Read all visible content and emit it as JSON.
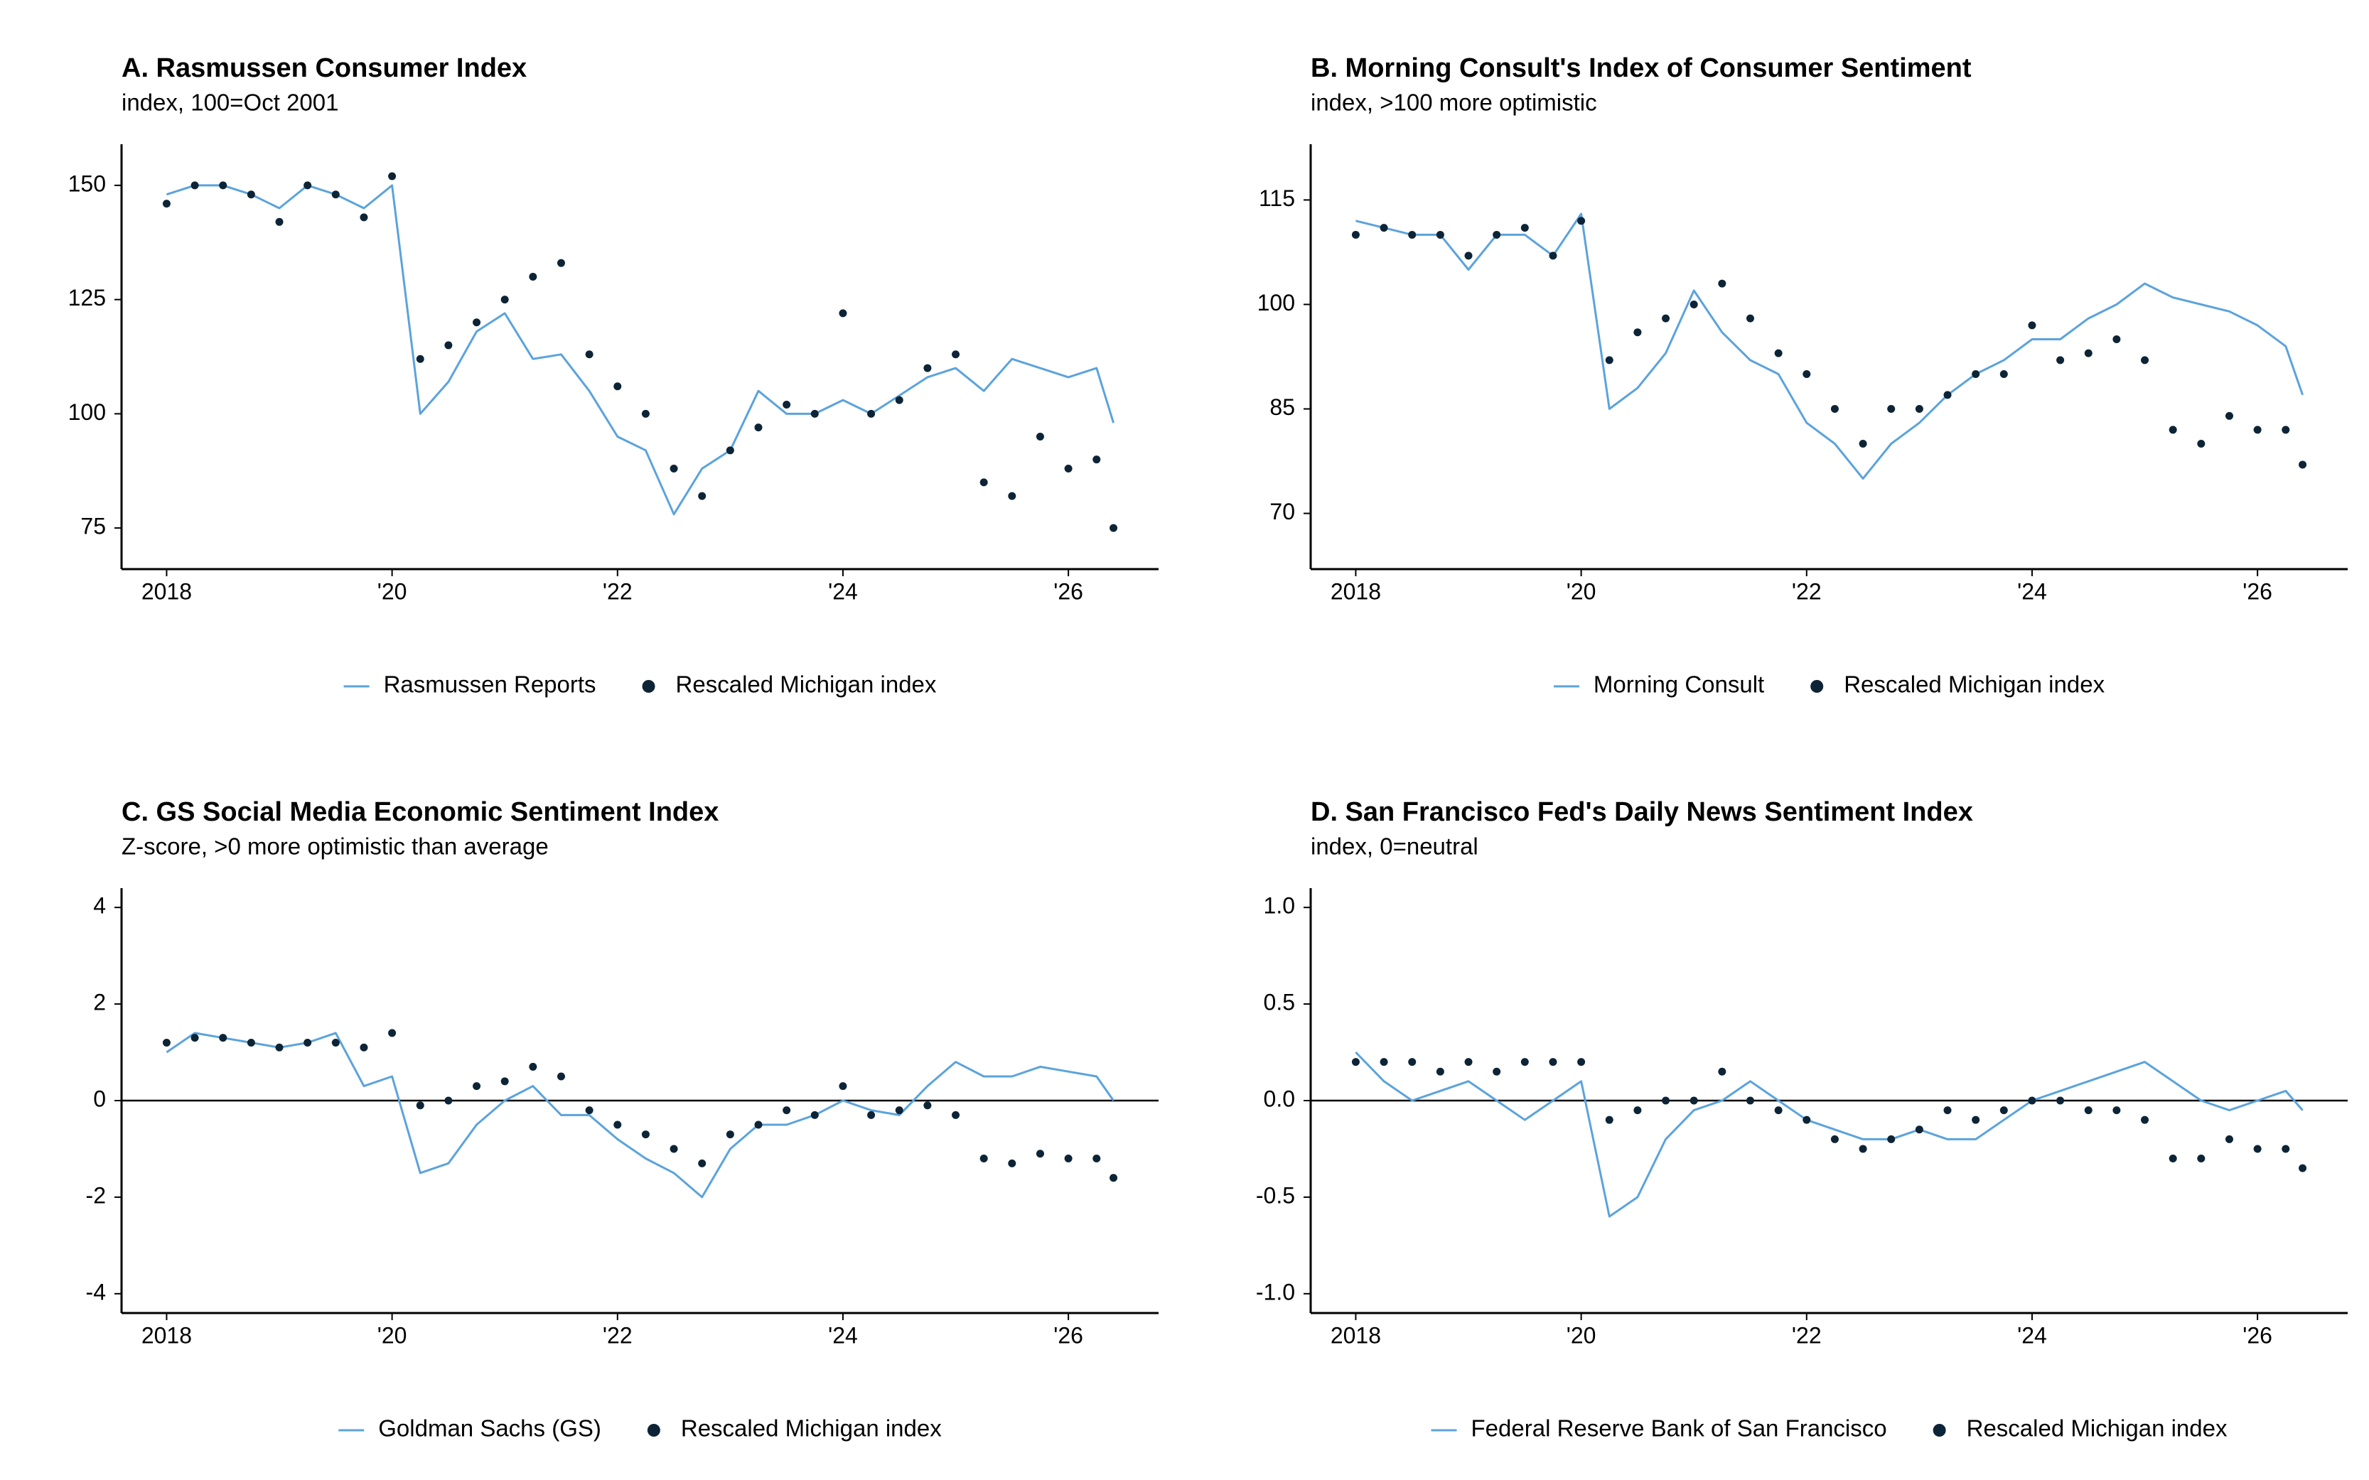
{
  "chart_data": [
    {
      "type": "line",
      "title": "A. Rasmussen Consumer Index",
      "subtitle": "index, 100=Oct 2001",
      "x": [
        2018,
        2018.25,
        2018.5,
        2018.75,
        2019,
        2019.25,
        2019.5,
        2019.75,
        2020,
        2020.25,
        2020.5,
        2020.75,
        2021,
        2021.25,
        2021.5,
        2021.75,
        2022,
        2022.25,
        2022.5,
        2022.75,
        2023,
        2023.25,
        2023.5,
        2023.75,
        2024,
        2024.25,
        2024.5,
        2024.75,
        2025,
        2025.25,
        2025.5,
        2025.75,
        2026,
        2026.25,
        2026.4
      ],
      "series": [
        {
          "name": "Rasmussen Reports",
          "mark": "line",
          "color": "#5ba3dc",
          "values": [
            148,
            150,
            150,
            148,
            145,
            150,
            148,
            145,
            150,
            100,
            107,
            118,
            122,
            112,
            113,
            105,
            95,
            92,
            78,
            88,
            92,
            105,
            100,
            100,
            103,
            100,
            104,
            108,
            110,
            105,
            112,
            110,
            108,
            110,
            98
          ]
        },
        {
          "name": "Rescaled Michigan index",
          "mark": "dot",
          "color": "#0d2436",
          "values": [
            146,
            150,
            150,
            148,
            142,
            150,
            148,
            143,
            152,
            112,
            115,
            120,
            125,
            130,
            133,
            113,
            106,
            100,
            88,
            82,
            92,
            97,
            102,
            100,
            122,
            100,
            103,
            110,
            113,
            85,
            82,
            95,
            88,
            90,
            75
          ]
        }
      ],
      "xlim": [
        2017.6,
        2026.8
      ],
      "xticks": [
        {
          "value": 2018,
          "label": "2018"
        },
        {
          "value": 2020,
          "label": "'20"
        },
        {
          "value": 2022,
          "label": "'22"
        },
        {
          "value": 2024,
          "label": "'24"
        },
        {
          "value": 2026,
          "label": "'26"
        }
      ],
      "ylim": [
        66,
        159
      ],
      "yticks": [
        75,
        100,
        125,
        150
      ]
    },
    {
      "type": "line",
      "title": "B. Morning Consult's Index of Consumer Sentiment",
      "subtitle": "index, >100 more optimistic",
      "x": [
        2018,
        2018.25,
        2018.5,
        2018.75,
        2019,
        2019.25,
        2019.5,
        2019.75,
        2020,
        2020.25,
        2020.5,
        2020.75,
        2021,
        2021.25,
        2021.5,
        2021.75,
        2022,
        2022.25,
        2022.5,
        2022.75,
        2023,
        2023.25,
        2023.5,
        2023.75,
        2024,
        2024.25,
        2024.5,
        2024.75,
        2025,
        2025.25,
        2025.5,
        2025.75,
        2026,
        2026.25,
        2026.4
      ],
      "series": [
        {
          "name": "Morning Consult",
          "mark": "line",
          "color": "#5ba3dc",
          "values": [
            112,
            111,
            110,
            110,
            105,
            110,
            110,
            107,
            113,
            85,
            88,
            93,
            102,
            96,
            92,
            90,
            83,
            80,
            75,
            80,
            83,
            87,
            90,
            92,
            95,
            95,
            98,
            100,
            103,
            101,
            100,
            99,
            97,
            94,
            87
          ]
        },
        {
          "name": "Rescaled Michigan index",
          "mark": "dot",
          "color": "#0d2436",
          "values": [
            110,
            111,
            110,
            110,
            107,
            110,
            111,
            107,
            112,
            92,
            96,
            98,
            100,
            103,
            98,
            93,
            90,
            85,
            80,
            85,
            85,
            87,
            90,
            90,
            97,
            92,
            93,
            95,
            92,
            82,
            80,
            84,
            82,
            82,
            77
          ]
        }
      ],
      "xlim": [
        2017.6,
        2026.8
      ],
      "xticks": [
        {
          "value": 2018,
          "label": "2018"
        },
        {
          "value": 2020,
          "label": "'20"
        },
        {
          "value": 2022,
          "label": "'22"
        },
        {
          "value": 2024,
          "label": "'24"
        },
        {
          "value": 2026,
          "label": "'26"
        }
      ],
      "ylim": [
        62,
        123
      ],
      "yticks": [
        70,
        85,
        100,
        115
      ]
    },
    {
      "type": "line",
      "title": "C. GS Social Media Economic Sentiment Index",
      "subtitle": "Z-score, >0 more optimistic than average",
      "x": [
        2018,
        2018.25,
        2018.5,
        2018.75,
        2019,
        2019.25,
        2019.5,
        2019.75,
        2020,
        2020.25,
        2020.5,
        2020.75,
        2021,
        2021.25,
        2021.5,
        2021.75,
        2022,
        2022.25,
        2022.5,
        2022.75,
        2023,
        2023.25,
        2023.5,
        2023.75,
        2024,
        2024.25,
        2024.5,
        2024.75,
        2025,
        2025.25,
        2025.5,
        2025.75,
        2026,
        2026.25,
        2026.4
      ],
      "series": [
        {
          "name": "Goldman Sachs (GS)",
          "mark": "line",
          "color": "#5ba3dc",
          "values": [
            1.0,
            1.4,
            1.3,
            1.2,
            1.1,
            1.2,
            1.4,
            0.3,
            0.5,
            -1.5,
            -1.3,
            -0.5,
            0.0,
            0.3,
            -0.3,
            -0.3,
            -0.8,
            -1.2,
            -1.5,
            -2.0,
            -1.0,
            -0.5,
            -0.5,
            -0.3,
            0.0,
            -0.2,
            -0.3,
            0.3,
            0.8,
            0.5,
            0.5,
            0.7,
            0.6,
            0.5,
            0.0
          ]
        },
        {
          "name": "Rescaled Michigan index",
          "mark": "dot",
          "color": "#0d2436",
          "values": [
            1.2,
            1.3,
            1.3,
            1.2,
            1.1,
            1.2,
            1.2,
            1.1,
            1.4,
            -0.1,
            0.0,
            0.3,
            0.4,
            0.7,
            0.5,
            -0.2,
            -0.5,
            -0.7,
            -1.0,
            -1.3,
            -0.7,
            -0.5,
            -0.2,
            -0.3,
            0.3,
            -0.3,
            -0.2,
            -0.1,
            -0.3,
            -1.2,
            -1.3,
            -1.1,
            -1.2,
            -1.2,
            -1.6
          ]
        }
      ],
      "xlim": [
        2017.6,
        2026.8
      ],
      "xticks": [
        {
          "value": 2018,
          "label": "2018"
        },
        {
          "value": 2020,
          "label": "'20"
        },
        {
          "value": 2022,
          "label": "'22"
        },
        {
          "value": 2024,
          "label": "'24"
        },
        {
          "value": 2026,
          "label": "'26"
        }
      ],
      "ylim": [
        -4.4,
        4.4
      ],
      "yticks": [
        -4,
        -2,
        0,
        2,
        4
      ],
      "hline": 0
    },
    {
      "type": "line",
      "title": "D. San Francisco Fed's Daily News Sentiment Index",
      "subtitle": "index, 0=neutral",
      "x": [
        2018,
        2018.25,
        2018.5,
        2018.75,
        2019,
        2019.25,
        2019.5,
        2019.75,
        2020,
        2020.25,
        2020.5,
        2020.75,
        2021,
        2021.25,
        2021.5,
        2021.75,
        2022,
        2022.25,
        2022.5,
        2022.75,
        2023,
        2023.25,
        2023.5,
        2023.75,
        2024,
        2024.25,
        2024.5,
        2024.75,
        2025,
        2025.25,
        2025.5,
        2025.75,
        2026,
        2026.25,
        2026.4
      ],
      "series": [
        {
          "name": "Federal Reserve Bank of San Francisco",
          "mark": "line",
          "color": "#5ba3dc",
          "values": [
            0.25,
            0.1,
            0.0,
            0.05,
            0.1,
            0.0,
            -0.1,
            0.0,
            0.1,
            -0.6,
            -0.5,
            -0.2,
            -0.05,
            0.0,
            0.1,
            0.0,
            -0.1,
            -0.15,
            -0.2,
            -0.2,
            -0.15,
            -0.2,
            -0.2,
            -0.1,
            0.0,
            0.05,
            0.1,
            0.15,
            0.2,
            0.1,
            0.0,
            -0.05,
            0.0,
            0.05,
            -0.05
          ]
        },
        {
          "name": "Rescaled Michigan index",
          "mark": "dot",
          "color": "#0d2436",
          "values": [
            0.2,
            0.2,
            0.2,
            0.15,
            0.2,
            0.15,
            0.2,
            0.2,
            0.2,
            -0.1,
            -0.05,
            0.0,
            0.0,
            0.15,
            0.0,
            -0.05,
            -0.1,
            -0.2,
            -0.25,
            -0.2,
            -0.15,
            -0.05,
            -0.1,
            -0.05,
            0.0,
            0.0,
            -0.05,
            -0.05,
            -0.1,
            -0.3,
            -0.3,
            -0.2,
            -0.25,
            -0.25,
            -0.35
          ]
        }
      ],
      "xlim": [
        2017.6,
        2026.8
      ],
      "xticks": [
        {
          "value": 2018,
          "label": "2018"
        },
        {
          "value": 2020,
          "label": "'20"
        },
        {
          "value": 2022,
          "label": "'22"
        },
        {
          "value": 2024,
          "label": "'24"
        },
        {
          "value": 2026,
          "label": "'26"
        }
      ],
      "ylim": [
        -1.1,
        1.1
      ],
      "yticks": [
        {
          "value": -1.0,
          "label": "-1.0"
        },
        {
          "value": -0.5,
          "label": "-0.5"
        },
        {
          "value": 0.0,
          "label": "0.0"
        },
        {
          "value": 0.5,
          "label": "0.5"
        },
        {
          "value": 1.0,
          "label": "1.0"
        }
      ],
      "hline": 0
    }
  ]
}
